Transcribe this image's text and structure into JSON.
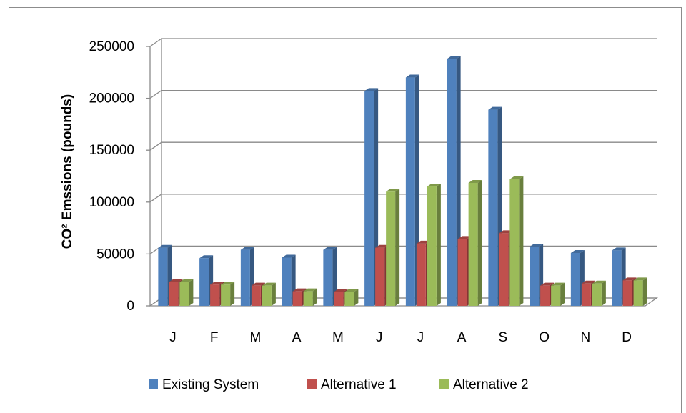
{
  "chart_data": {
    "type": "bar",
    "categories": [
      "J",
      "F",
      "M",
      "A",
      "M",
      "J",
      "J",
      "A",
      "S",
      "O",
      "N",
      "D"
    ],
    "series": [
      {
        "name": "Existing System",
        "color": "#4f81bd",
        "values": [
          56000,
          46000,
          54000,
          46500,
          54000,
          207000,
          220000,
          238000,
          189000,
          57000,
          51000,
          53500
        ]
      },
      {
        "name": "Alternative 1",
        "color": "#c0504d",
        "values": [
          23000,
          20500,
          19500,
          14000,
          13500,
          56000,
          60000,
          64500,
          70000,
          19500,
          21500,
          24500
        ]
      },
      {
        "name": "Alternative 2",
        "color": "#9bbb59",
        "values": [
          23000,
          20500,
          19500,
          14000,
          13500,
          110000,
          115000,
          118500,
          122000,
          19500,
          21500,
          24500
        ]
      }
    ],
    "ylabel": "CO² Emssions (pounds)",
    "xlabel": "",
    "ylim": [
      0,
      250000
    ],
    "yticks": [
      0,
      50000,
      100000,
      150000,
      200000,
      250000
    ],
    "grid": true,
    "legend_position": "bottom",
    "style": "3d-clustered-column"
  }
}
